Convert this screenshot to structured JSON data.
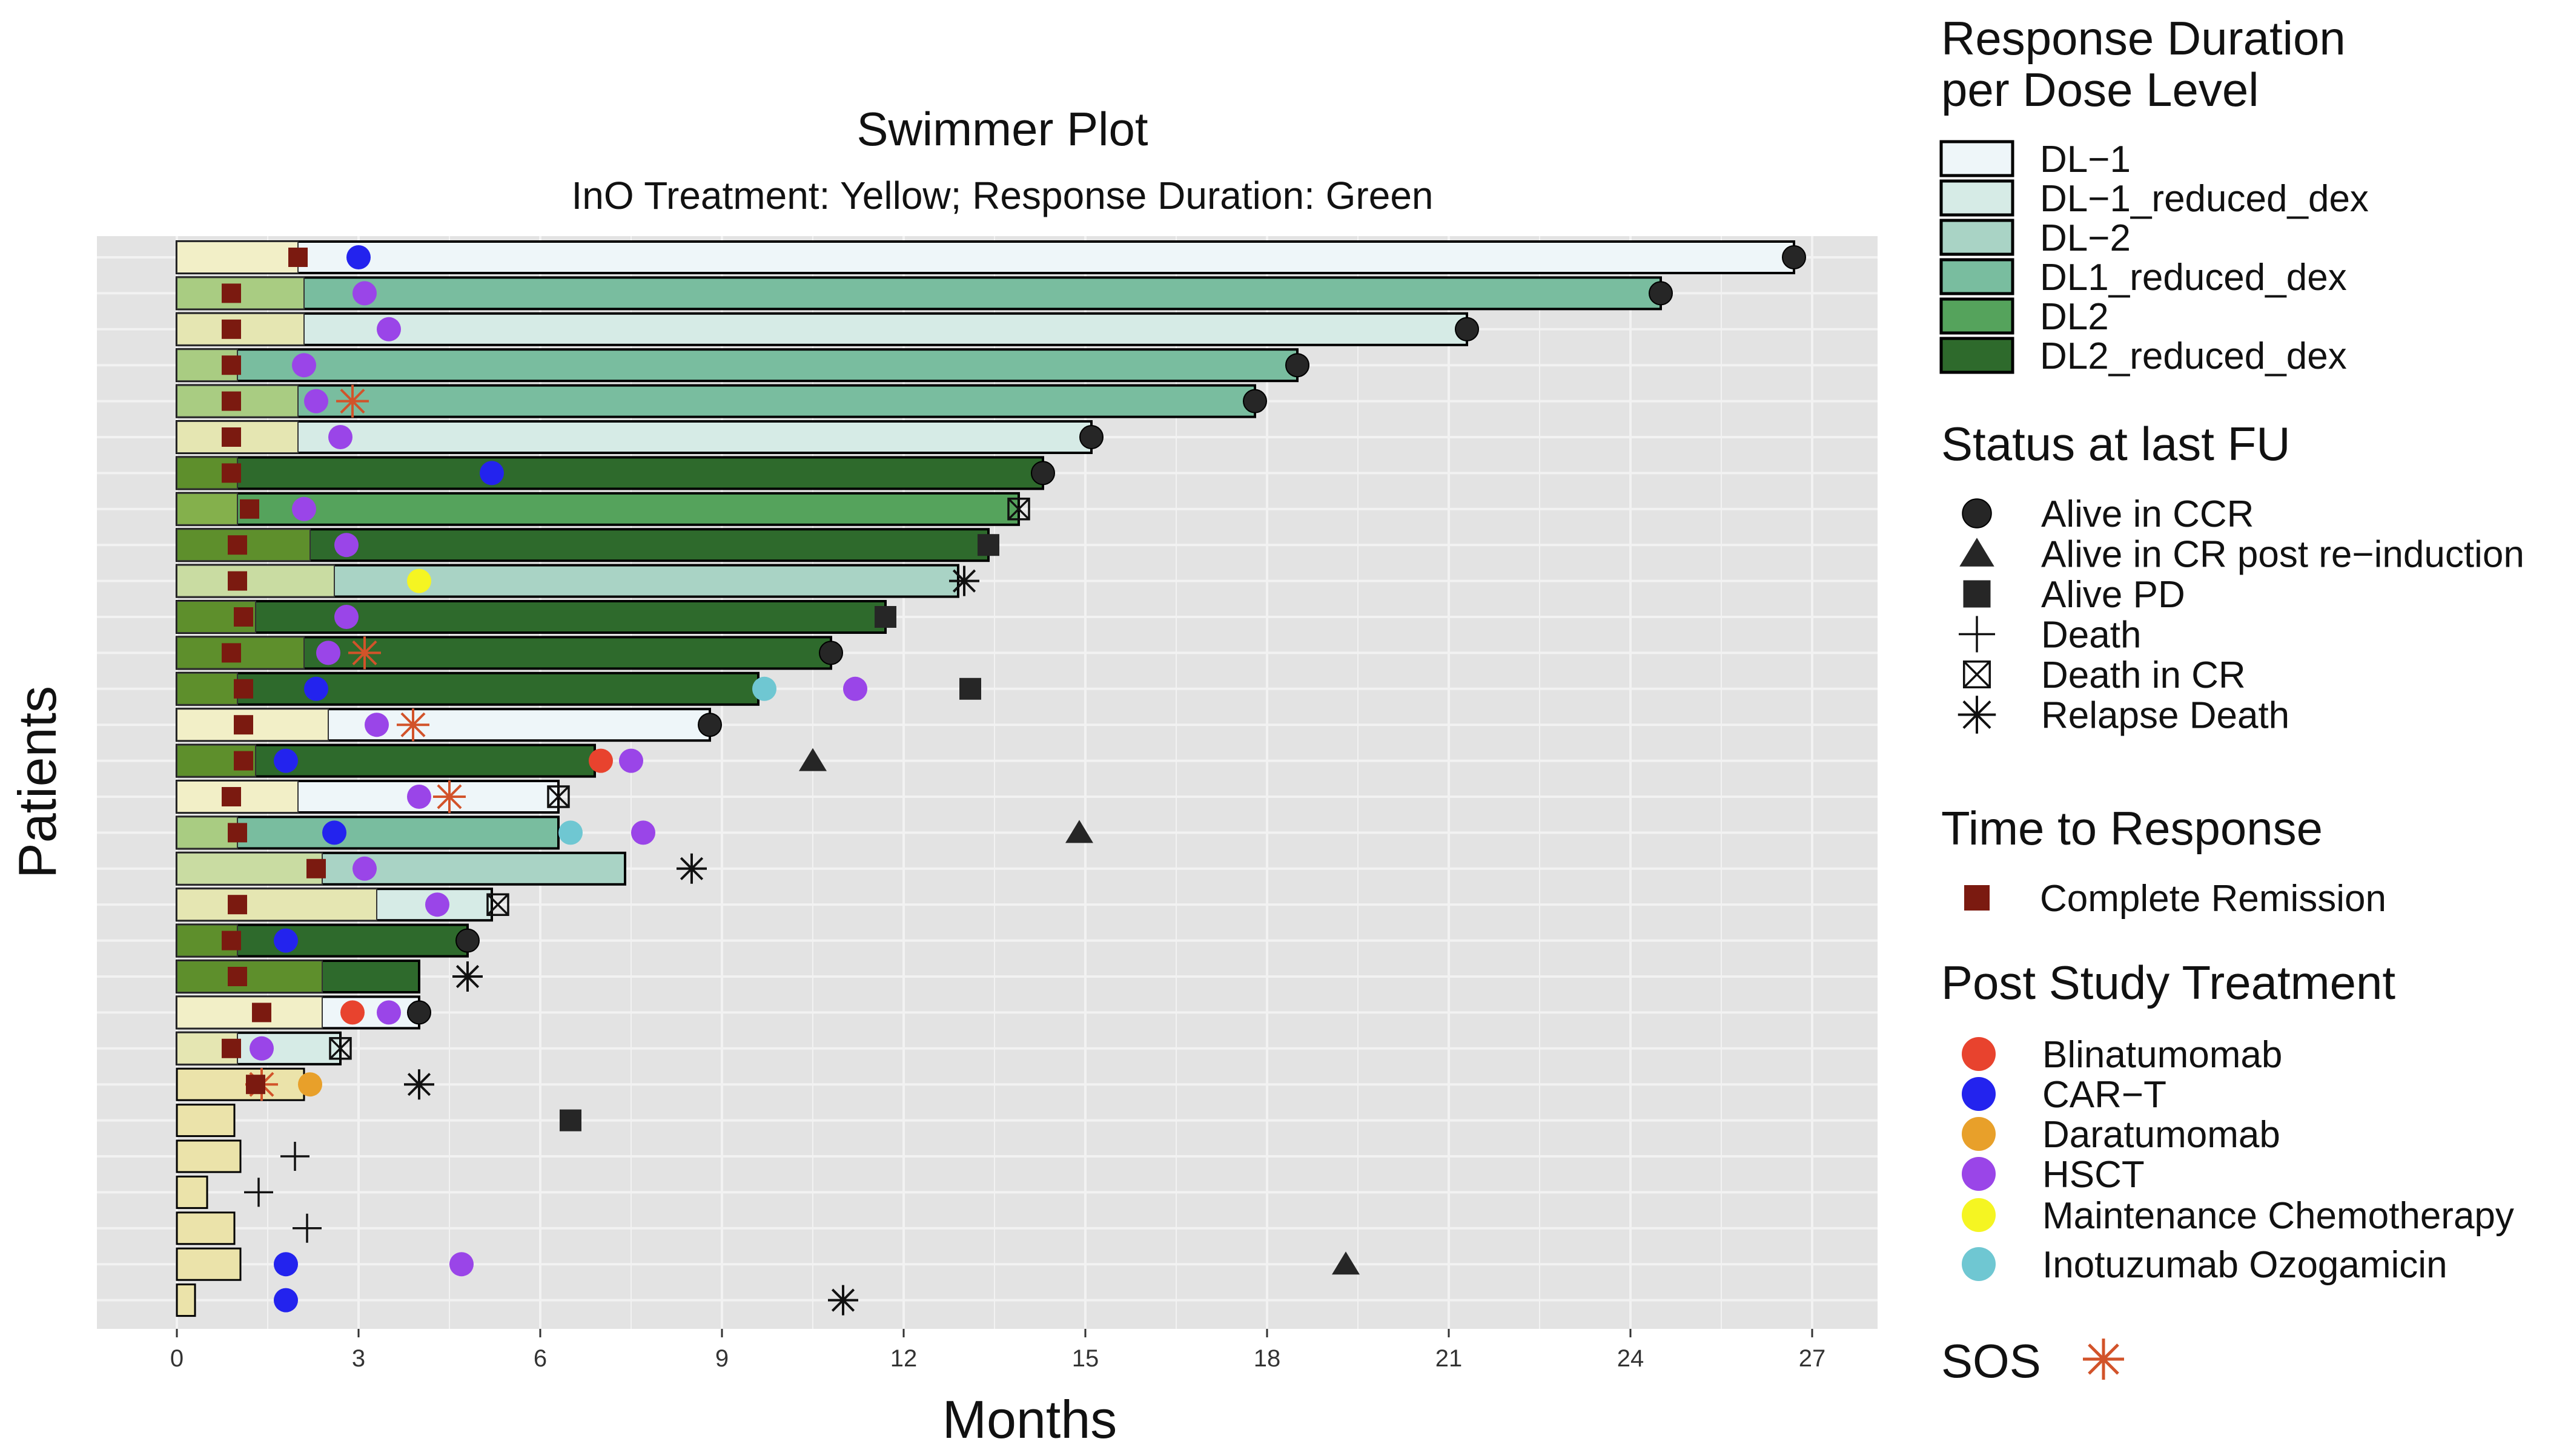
{
  "chart_data": {
    "type": "swimmer",
    "title": "Swimmer Plot",
    "subtitle": "InO Treatment: Yellow; Response Duration: Green",
    "xlabel": "Months",
    "ylabel": "Patients",
    "xlim": [
      -1.3,
      28.5
    ],
    "xticks": [
      0,
      3,
      6,
      9,
      12,
      15,
      18,
      21,
      24,
      27
    ],
    "xtick_labels": [
      "0",
      "3",
      "6",
      "9",
      "12",
      "15",
      "18",
      "21",
      "24",
      "27"
    ],
    "grid": true,
    "legend_position": "right",
    "dose_levels": [
      {
        "name": "DL−1",
        "fill": "#eef6f9",
        "ino": "#f2efc7"
      },
      {
        "name": "DL−1_reduced_dex",
        "fill": "#d6ebe6",
        "ino": "#e5e6b2"
      },
      {
        "name": "DL−2",
        "fill": "#a9d3c5",
        "ino": "#c9dca2"
      },
      {
        "name": "DL1_reduced_dex",
        "fill": "#79bd9f",
        "ino": "#a9cc82"
      },
      {
        "name": "DL2",
        "fill": "#55a35c",
        "ino": "#84b04c"
      },
      {
        "name": "DL2_reduced_dex",
        "fill": "#2e6a2c",
        "ino": "#5e8f2c"
      }
    ],
    "status_types": [
      {
        "key": "ccr",
        "label": "Alive in CCR"
      },
      {
        "key": "cr_reind",
        "label": "Alive in CR post re−induction"
      },
      {
        "key": "pd",
        "label": "Alive PD"
      },
      {
        "key": "death",
        "label": "Death"
      },
      {
        "key": "death_cr",
        "label": "Death in CR"
      },
      {
        "key": "relapse_death",
        "label": "Relapse Death"
      }
    ],
    "response_types": [
      {
        "key": "cr",
        "label": "Complete Remission",
        "color": "#7b1a10"
      }
    ],
    "treatments": [
      {
        "key": "blin",
        "label": "Blinatumomab",
        "color": "#e8432e"
      },
      {
        "key": "cart",
        "label": "CAR−T",
        "color": "#2323ee"
      },
      {
        "key": "dara",
        "label": "Daratumomab",
        "color": "#e8a02a"
      },
      {
        "key": "hsct",
        "label": "HSCT",
        "color": "#9a45e8"
      },
      {
        "key": "maint",
        "label": "Maintenance Chemotherapy",
        "color": "#f5f522"
      },
      {
        "key": "ino",
        "label": "Inotuzumab Ozogamicin",
        "color": "#6fc7d2"
      }
    ],
    "sos": {
      "label": "SOS",
      "color": "#d2532a"
    },
    "legend_titles": {
      "dose": "Response Duration per Dose Level",
      "status": "Status at last FU",
      "response": "Time to Response",
      "treatment": "Post Study Treatment"
    },
    "patients": [
      {
        "dl": 0,
        "ino": 2.0,
        "end": 26.7,
        "cr": 2.0,
        "status": "ccr",
        "status_x": 26.7,
        "tx": [
          {
            "t": "cart",
            "x": 3.0
          }
        ],
        "sos": []
      },
      {
        "dl": 3,
        "ino": 2.1,
        "end": 24.5,
        "cr": 0.9,
        "status": "ccr",
        "status_x": 24.5,
        "tx": [
          {
            "t": "hsct",
            "x": 3.1
          }
        ],
        "sos": []
      },
      {
        "dl": 1,
        "ino": 2.1,
        "end": 21.3,
        "cr": 0.9,
        "status": "ccr",
        "status_x": 21.3,
        "tx": [
          {
            "t": "hsct",
            "x": 3.5
          }
        ],
        "sos": []
      },
      {
        "dl": 3,
        "ino": 1.0,
        "end": 18.5,
        "cr": 0.9,
        "status": "ccr",
        "status_x": 18.5,
        "tx": [
          {
            "t": "hsct",
            "x": 2.1
          }
        ],
        "sos": []
      },
      {
        "dl": 3,
        "ino": 2.0,
        "end": 17.8,
        "cr": 0.9,
        "status": "ccr",
        "status_x": 17.8,
        "tx": [
          {
            "t": "hsct",
            "x": 2.3
          }
        ],
        "sos": [
          2.9
        ]
      },
      {
        "dl": 1,
        "ino": 2.0,
        "end": 15.1,
        "cr": 0.9,
        "status": "ccr",
        "status_x": 15.1,
        "tx": [
          {
            "t": "hsct",
            "x": 2.7
          }
        ],
        "sos": []
      },
      {
        "dl": 5,
        "ino": 1.0,
        "end": 14.3,
        "cr": 0.9,
        "status": "ccr",
        "status_x": 14.3,
        "tx": [
          {
            "t": "cart",
            "x": 5.2
          }
        ],
        "sos": []
      },
      {
        "dl": 4,
        "ino": 1.0,
        "end": 13.9,
        "cr": 1.2,
        "status": "death_cr",
        "status_x": 13.9,
        "tx": [
          {
            "t": "hsct",
            "x": 2.1
          }
        ],
        "sos": []
      },
      {
        "dl": 5,
        "ino": 2.2,
        "end": 13.4,
        "cr": 1.0,
        "status": "pd",
        "status_x": 13.4,
        "tx": [
          {
            "t": "hsct",
            "x": 2.8
          }
        ],
        "sos": []
      },
      {
        "dl": 2,
        "ino": 2.6,
        "end": 12.9,
        "cr": 1.0,
        "status": "relapse_death",
        "status_x": 13.0,
        "tx": [
          {
            "t": "maint",
            "x": 4.0
          }
        ],
        "sos": []
      },
      {
        "dl": 5,
        "ino": 1.3,
        "end": 11.7,
        "cr": 1.1,
        "status": "pd",
        "status_x": 11.7,
        "tx": [
          {
            "t": "hsct",
            "x": 2.8
          }
        ],
        "sos": []
      },
      {
        "dl": 5,
        "ino": 2.1,
        "end": 10.8,
        "cr": 0.9,
        "status": "ccr",
        "status_x": 10.8,
        "tx": [
          {
            "t": "hsct",
            "x": 2.5
          }
        ],
        "sos": [
          3.1
        ]
      },
      {
        "dl": 5,
        "ino": 1.0,
        "end": 9.6,
        "cr": 1.1,
        "status": "pd",
        "status_x": 13.1,
        "tx": [
          {
            "t": "cart",
            "x": 2.3
          },
          {
            "t": "ino",
            "x": 9.7
          },
          {
            "t": "hsct",
            "x": 11.2
          }
        ],
        "sos": []
      },
      {
        "dl": 0,
        "ino": 2.5,
        "end": 8.8,
        "cr": 1.1,
        "status": "ccr",
        "status_x": 8.8,
        "tx": [
          {
            "t": "hsct",
            "x": 3.3
          }
        ],
        "sos": [
          3.9
        ]
      },
      {
        "dl": 5,
        "ino": 1.3,
        "end": 6.9,
        "cr": 1.1,
        "status": "cr_reind",
        "status_x": 10.5,
        "tx": [
          {
            "t": "cart",
            "x": 1.8
          },
          {
            "t": "blin",
            "x": 7.0
          },
          {
            "t": "hsct",
            "x": 7.5
          }
        ],
        "sos": []
      },
      {
        "dl": 0,
        "ino": 2.0,
        "end": 6.3,
        "cr": 0.9,
        "status": "death_cr",
        "status_x": 6.3,
        "tx": [
          {
            "t": "hsct",
            "x": 4.0
          }
        ],
        "sos": [
          4.5
        ]
      },
      {
        "dl": 3,
        "ino": 1.0,
        "end": 6.3,
        "cr": 1.0,
        "status": "cr_reind",
        "status_x": 14.9,
        "tx": [
          {
            "t": "cart",
            "x": 2.6
          },
          {
            "t": "ino",
            "x": 6.5
          },
          {
            "t": "hsct",
            "x": 7.7
          }
        ],
        "sos": []
      },
      {
        "dl": 2,
        "ino": 2.4,
        "end": 7.4,
        "cr": 2.3,
        "status": "relapse_death",
        "status_x": 8.5,
        "tx": [
          {
            "t": "hsct",
            "x": 3.1
          }
        ],
        "sos": []
      },
      {
        "dl": 1,
        "ino": 3.3,
        "end": 5.2,
        "cr": 1.0,
        "status": "death_cr",
        "status_x": 5.3,
        "tx": [
          {
            "t": "hsct",
            "x": 4.3
          }
        ],
        "sos": []
      },
      {
        "dl": 5,
        "ino": 1.0,
        "end": 4.8,
        "cr": 0.9,
        "status": "ccr",
        "status_x": 4.8,
        "tx": [
          {
            "t": "cart",
            "x": 1.8
          }
        ],
        "sos": []
      },
      {
        "dl": 5,
        "ino": 2.4,
        "end": 4.0,
        "cr": 1.0,
        "status": "relapse_death",
        "status_x": 4.8,
        "tx": [],
        "sos": []
      },
      {
        "dl": 0,
        "ino": 2.4,
        "end": 4.0,
        "cr": 1.4,
        "status": "ccr",
        "status_x": 4.0,
        "tx": [
          {
            "t": "blin",
            "x": 2.9
          },
          {
            "t": "hsct",
            "x": 3.5
          }
        ],
        "sos": []
      },
      {
        "dl": 1,
        "ino": 1.0,
        "end": 2.7,
        "cr": 0.9,
        "status": "death_cr",
        "status_x": 2.7,
        "tx": [
          {
            "t": "hsct",
            "x": 1.4
          }
        ],
        "sos": []
      },
      {
        "dl": 0,
        "ino": 2.1,
        "end": 2.1,
        "cr": 1.3,
        "status": "relapse_death",
        "status_x": 4.0,
        "tx": [
          {
            "t": "dara",
            "x": 2.2
          }
        ],
        "sos": [
          1.4
        ]
      },
      {
        "dl": 0,
        "ino": 0.95,
        "end": 0.95,
        "cr": null,
        "status": "pd",
        "status_x": 6.5,
        "tx": [],
        "sos": []
      },
      {
        "dl": 0,
        "ino": 1.05,
        "end": 1.05,
        "cr": null,
        "status": "death",
        "status_x": 1.95,
        "tx": [],
        "sos": []
      },
      {
        "dl": 0,
        "ino": 0.5,
        "end": 0.5,
        "cr": null,
        "status": "death",
        "status_x": 1.35,
        "tx": [],
        "sos": []
      },
      {
        "dl": 0,
        "ino": 0.95,
        "end": 0.95,
        "cr": null,
        "status": "death",
        "status_x": 2.15,
        "tx": [],
        "sos": []
      },
      {
        "dl": 0,
        "ino": 1.05,
        "end": 1.05,
        "cr": null,
        "status": "cr_reind",
        "status_x": 19.3,
        "tx": [
          {
            "t": "cart",
            "x": 1.8
          },
          {
            "t": "hsct",
            "x": 4.7
          }
        ],
        "sos": []
      },
      {
        "dl": 0,
        "ino": 0.3,
        "end": 0.3,
        "cr": null,
        "status": "relapse_death",
        "status_x": 11.0,
        "tx": [
          {
            "t": "cart",
            "x": 1.8
          }
        ],
        "sos": []
      }
    ]
  }
}
